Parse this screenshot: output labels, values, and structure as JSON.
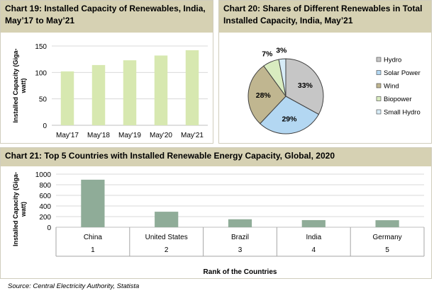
{
  "chart_data": [
    {
      "id": "c19",
      "type": "bar",
      "title": "Chart 19: Installed Capacity of Renewables, India, May’17 to May’21",
      "ylabel_lines": [
        "Installed Capacity (Giga-",
        "watt)"
      ],
      "categories": [
        "May'17",
        "May'18",
        "May'19",
        "May'20",
        "May'21"
      ],
      "values": [
        102,
        114,
        123,
        132,
        142
      ],
      "ylim": [
        0,
        150
      ],
      "yticks": [
        0,
        50,
        100,
        150
      ],
      "grid": true,
      "color": "#d7e8b0"
    },
    {
      "id": "c20",
      "type": "pie",
      "title": "Chart 20: Shares of Different Renewables in Total Installed Capacity, India, May’21",
      "slices": [
        {
          "label": "Hydro",
          "value": 33,
          "pct_label": "33%",
          "color": "#c6c6c6"
        },
        {
          "label": "Solar Power",
          "value": 29,
          "pct_label": "29%",
          "color": "#b3d7f2"
        },
        {
          "label": "Wind",
          "value": 28,
          "pct_label": "28%",
          "color": "#c0b690"
        },
        {
          "label": "Biopower",
          "value": 7,
          "pct_label": "7%",
          "color": "#d9ecc0"
        },
        {
          "label": "Small Hydro",
          "value": 3,
          "pct_label": "3%",
          "color": "#d7ecf7"
        }
      ],
      "legend": "right"
    },
    {
      "id": "c21",
      "type": "bar",
      "title": "Chart 21: Top 5 Countries with Installed Renewable Energy Capacity, Global, 2020",
      "ylabel_lines": [
        "Installed Capacity (Giga-",
        "watt)"
      ],
      "xlabel": "Rank of the Countries",
      "categories": [
        "China",
        "United States",
        "Brazil",
        "India",
        "Germany"
      ],
      "ranks": [
        "1",
        "2",
        "3",
        "4",
        "5"
      ],
      "values": [
        895,
        292,
        150,
        134,
        132
      ],
      "ylim": [
        0,
        1000
      ],
      "yticks": [
        0,
        200,
        400,
        600,
        800,
        1000
      ],
      "grid": true,
      "color": "#8fac98"
    }
  ],
  "source": "Source: Central Electricity Authority, Statista"
}
